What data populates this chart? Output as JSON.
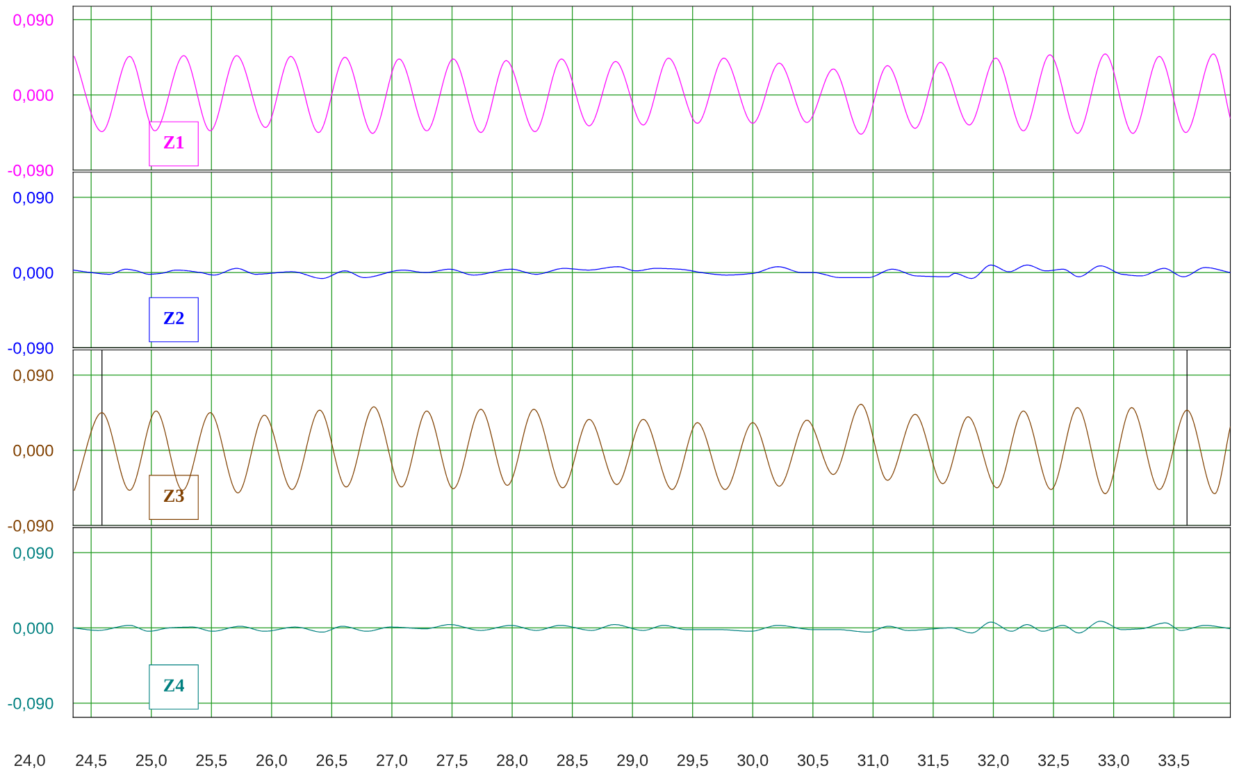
{
  "chart_data": [
    {
      "type": "line",
      "xlim": [
        24.35,
        33.97
      ],
      "ylim": [
        -0.09,
        0.106
      ],
      "xticks": [
        {
          "value": 24.5,
          "label": null
        },
        {
          "value": 25.0,
          "label": null
        },
        {
          "value": 25.5,
          "label": null
        },
        {
          "value": 26.0,
          "label": null
        },
        {
          "value": 26.5,
          "label": null
        },
        {
          "value": 27.0,
          "label": null
        },
        {
          "value": 27.5,
          "label": null
        },
        {
          "value": 28.0,
          "label": null
        },
        {
          "value": 28.5,
          "label": null
        },
        {
          "value": 29.0,
          "label": null
        },
        {
          "value": 29.5,
          "label": null
        },
        {
          "value": 30.0,
          "label": null
        },
        {
          "value": 30.5,
          "label": null
        },
        {
          "value": 31.0,
          "label": null
        },
        {
          "value": 31.5,
          "label": null
        },
        {
          "value": 32.0,
          "label": null
        },
        {
          "value": 32.5,
          "label": null
        },
        {
          "value": 33.0,
          "label": null
        },
        {
          "value": 33.5,
          "label": null
        }
      ],
      "yticks": [
        {
          "value": -0.09,
          "label": "-0,090"
        },
        {
          "value": 0,
          "label": "0,000"
        },
        {
          "value": 0.09,
          "label": "0,090"
        }
      ],
      "grid": true,
      "tick_labels": "y",
      "series": [
        {
          "name": "Z1",
          "color": "#ff00ff",
          "x": [
            24.36,
            24.59,
            24.82,
            25.03,
            25.27,
            25.49,
            25.71,
            25.95,
            26.16,
            26.39,
            26.61,
            26.84,
            27.06,
            27.29,
            27.51,
            27.74,
            27.95,
            28.19,
            28.41,
            28.64,
            28.86,
            29.09,
            29.3,
            29.54,
            29.76,
            30.0,
            30.22,
            30.45,
            30.67,
            30.9,
            31.12,
            31.35,
            31.56,
            31.8,
            32.02,
            32.25,
            32.47,
            32.7,
            32.93,
            33.16,
            33.38,
            33.6,
            33.83,
            33.97
          ],
          "values": [
            0.046,
            -0.044,
            0.046,
            -0.043,
            0.047,
            -0.043,
            0.047,
            -0.039,
            0.046,
            -0.045,
            0.045,
            -0.046,
            0.043,
            -0.043,
            0.043,
            -0.045,
            0.041,
            -0.044,
            0.043,
            -0.037,
            0.04,
            -0.036,
            0.044,
            -0.034,
            0.044,
            -0.034,
            0.038,
            -0.033,
            0.031,
            -0.047,
            0.035,
            -0.04,
            0.039,
            -0.036,
            0.044,
            -0.043,
            0.048,
            -0.046,
            0.049,
            -0.046,
            0.046,
            -0.045,
            0.049,
            -0.028
          ]
        }
      ]
    },
    {
      "type": "line",
      "xlim": [
        24.35,
        33.97
      ],
      "ylim": [
        -0.09,
        0.12
      ],
      "xticks": [
        {
          "value": 24.5,
          "label": null
        },
        {
          "value": 25.0,
          "label": null
        },
        {
          "value": 25.5,
          "label": null
        },
        {
          "value": 26.0,
          "label": null
        },
        {
          "value": 26.5,
          "label": null
        },
        {
          "value": 27.0,
          "label": null
        },
        {
          "value": 27.5,
          "label": null
        },
        {
          "value": 28.0,
          "label": null
        },
        {
          "value": 28.5,
          "label": null
        },
        {
          "value": 29.0,
          "label": null
        },
        {
          "value": 29.5,
          "label": null
        },
        {
          "value": 30.0,
          "label": null
        },
        {
          "value": 30.5,
          "label": null
        },
        {
          "value": 31.0,
          "label": null
        },
        {
          "value": 31.5,
          "label": null
        },
        {
          "value": 32.0,
          "label": null
        },
        {
          "value": 32.5,
          "label": null
        },
        {
          "value": 33.0,
          "label": null
        },
        {
          "value": 33.5,
          "label": null
        }
      ],
      "yticks": [
        {
          "value": -0.09,
          "label": "-0,090"
        },
        {
          "value": 0,
          "label": "0,000"
        },
        {
          "value": 0.09,
          "label": "0,090"
        }
      ],
      "grid": true,
      "tick_labels": "y",
      "series": [
        {
          "name": "Z2",
          "color": "#0000ff",
          "x": [
            24.35,
            24.5,
            24.65,
            24.79,
            24.88,
            24.98,
            25.08,
            25.21,
            25.41,
            25.52,
            25.71,
            25.87,
            26.17,
            26.42,
            26.61,
            26.77,
            27.09,
            27.28,
            27.48,
            27.68,
            27.99,
            28.2,
            28.43,
            28.63,
            28.88,
            29.03,
            29.19,
            29.39,
            29.62,
            29.78,
            30.0,
            30.21,
            30.41,
            30.5,
            30.73,
            30.96,
            31.16,
            31.36,
            31.62,
            31.68,
            31.82,
            31.98,
            32.13,
            32.28,
            32.44,
            32.58,
            32.71,
            32.89,
            33.07,
            33.23,
            33.42,
            33.58,
            33.76,
            33.97
          ],
          "values": [
            0.003,
            0,
            -0.002,
            0.004,
            0.002,
            -0.002,
            -0.001,
            0.003,
            0,
            -0.003,
            0.005,
            -0.002,
            0.001,
            -0.007,
            0.002,
            -0.006,
            0.003,
            0,
            0.004,
            -0.003,
            0.004,
            -0.002,
            0.005,
            0.003,
            0.007,
            0.002,
            0.005,
            0.004,
            -0.001,
            -0.003,
            -0.001,
            0.007,
            0,
            0,
            -0.006,
            -0.006,
            0.004,
            -0.004,
            -0.005,
            -0.001,
            -0.007,
            0.009,
            0.001,
            0.009,
            0.002,
            0.004,
            -0.005,
            0.008,
            -0.002,
            -0.004,
            0.005,
            -0.005,
            0.006,
            0
          ]
        }
      ]
    },
    {
      "type": "line",
      "xlim": [
        24.35,
        33.97
      ],
      "ylim": [
        -0.09,
        0.12
      ],
      "xticks": [
        {
          "value": 24.5,
          "label": null
        },
        {
          "value": 25.0,
          "label": null
        },
        {
          "value": 25.5,
          "label": null
        },
        {
          "value": 26.0,
          "label": null
        },
        {
          "value": 26.5,
          "label": null
        },
        {
          "value": 27.0,
          "label": null
        },
        {
          "value": 27.5,
          "label": null
        },
        {
          "value": 28.0,
          "label": null
        },
        {
          "value": 28.5,
          "label": null
        },
        {
          "value": 29.0,
          "label": null
        },
        {
          "value": 29.5,
          "label": null
        },
        {
          "value": 30.0,
          "label": null
        },
        {
          "value": 30.5,
          "label": null
        },
        {
          "value": 31.0,
          "label": null
        },
        {
          "value": 31.5,
          "label": null
        },
        {
          "value": 32.0,
          "label": null
        },
        {
          "value": 32.5,
          "label": null
        },
        {
          "value": 33.0,
          "label": null
        },
        {
          "value": 33.5,
          "label": null
        }
      ],
      "yticks": [
        {
          "value": -0.09,
          "label": "-0,090"
        },
        {
          "value": 0,
          "label": "0,000"
        },
        {
          "value": 0.09,
          "label": "0,090"
        }
      ],
      "grid": true,
      "tick_labels": "y",
      "ref_lines": [
        {
          "axis": "x",
          "value": 24.59,
          "color": "#000000"
        },
        {
          "axis": "x",
          "value": 33.61,
          "color": "#000000"
        }
      ],
      "series": [
        {
          "name": "Z3",
          "color": "#804000",
          "x": [
            24.36,
            24.59,
            24.82,
            25.04,
            25.26,
            25.49,
            25.72,
            25.94,
            26.17,
            26.4,
            26.62,
            26.85,
            27.08,
            27.29,
            27.51,
            27.74,
            27.96,
            28.18,
            28.42,
            28.64,
            28.87,
            29.09,
            29.33,
            29.54,
            29.77,
            30.0,
            30.22,
            30.45,
            30.67,
            30.9,
            31.12,
            31.35,
            31.58,
            31.79,
            32.03,
            32.25,
            32.48,
            32.7,
            32.93,
            33.15,
            33.38,
            33.61,
            33.84,
            33.97
          ],
          "values": [
            -0.048,
            0.045,
            -0.048,
            0.047,
            -0.048,
            0.045,
            -0.051,
            0.042,
            -0.047,
            0.048,
            -0.044,
            0.052,
            -0.044,
            0.047,
            -0.046,
            0.049,
            -0.042,
            0.049,
            -0.045,
            0.037,
            -0.041,
            0.037,
            -0.047,
            0.033,
            -0.047,
            0.033,
            -0.043,
            0.036,
            -0.029,
            0.055,
            -0.036,
            0.043,
            -0.04,
            0.04,
            -0.045,
            0.047,
            -0.047,
            0.051,
            -0.052,
            0.051,
            -0.047,
            0.048,
            -0.052,
            0.028
          ]
        }
      ]
    },
    {
      "type": "line",
      "xlim": [
        24.35,
        33.97
      ],
      "ylim": [
        -0.107,
        0.12
      ],
      "xticks": [
        {
          "value": 24.5,
          "label": "24,5"
        },
        {
          "value": 25.0,
          "label": "25,0"
        },
        {
          "value": 25.5,
          "label": "25,5"
        },
        {
          "value": 26.0,
          "label": "26,0"
        },
        {
          "value": 26.5,
          "label": "26,5"
        },
        {
          "value": 27.0,
          "label": "27,0"
        },
        {
          "value": 27.5,
          "label": "27,5"
        },
        {
          "value": 28.0,
          "label": "28,0"
        },
        {
          "value": 28.5,
          "label": "28,5"
        },
        {
          "value": 29.0,
          "label": "29,0"
        },
        {
          "value": 29.5,
          "label": "29,5"
        },
        {
          "value": 30.0,
          "label": "30,0"
        },
        {
          "value": 30.5,
          "label": "30,5"
        },
        {
          "value": 31.0,
          "label": "31,0"
        },
        {
          "value": 31.5,
          "label": "31,5"
        },
        {
          "value": 32.0,
          "label": "32,0"
        },
        {
          "value": 32.5,
          "label": "32,5"
        },
        {
          "value": 33.0,
          "label": "33,0"
        },
        {
          "value": 33.5,
          "label": "33,5"
        }
      ],
      "yticks": [
        {
          "value": -0.09,
          "label": "-0,090"
        },
        {
          "value": 0,
          "label": "0,000"
        },
        {
          "value": 0.09,
          "label": "0,090"
        }
      ],
      "grid": true,
      "annotations": [
        "24,0"
      ],
      "series": [
        {
          "name": "Z4",
          "color": "#008080",
          "x": [
            24.35,
            24.56,
            24.82,
            24.98,
            25.15,
            25.34,
            25.51,
            25.74,
            25.94,
            26.2,
            26.42,
            26.59,
            26.79,
            26.99,
            27.28,
            27.48,
            27.74,
            27.99,
            28.2,
            28.4,
            28.66,
            28.85,
            29.09,
            29.26,
            29.45,
            29.72,
            29.98,
            30.21,
            30.5,
            30.7,
            30.96,
            31.13,
            31.29,
            31.65,
            31.82,
            31.98,
            32.15,
            32.28,
            32.41,
            32.58,
            32.71,
            32.89,
            33.07,
            33.23,
            33.43,
            33.56,
            33.76,
            33.97
          ],
          "values": [
            0,
            -0.003,
            0.003,
            -0.004,
            0,
            0.001,
            -0.004,
            0.002,
            -0.004,
            0.001,
            -0.005,
            0.002,
            -0.004,
            0.001,
            -0.001,
            0.004,
            -0.003,
            0.003,
            -0.003,
            0.003,
            -0.003,
            0.004,
            -0.003,
            0.003,
            -0.002,
            -0.002,
            -0.004,
            0.003,
            -0.002,
            -0.002,
            -0.005,
            0.002,
            -0.003,
            0,
            -0.006,
            0.007,
            -0.004,
            0.004,
            -0.004,
            0.003,
            -0.006,
            0.008,
            -0.002,
            -0.001,
            0.006,
            -0.003,
            0.003,
            -0.001
          ]
        }
      ]
    }
  ]
}
